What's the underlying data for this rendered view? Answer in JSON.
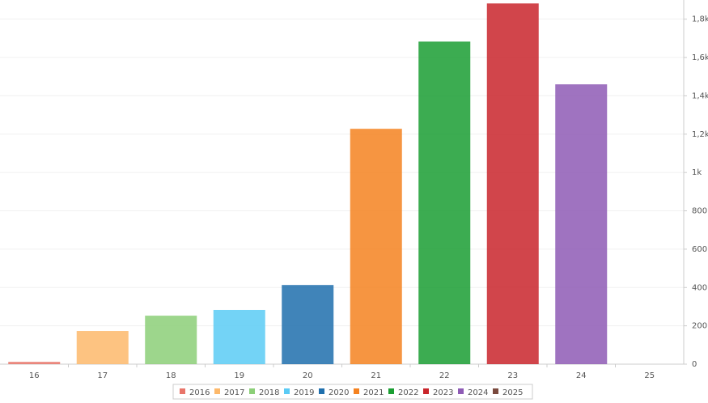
{
  "chart_data": {
    "type": "bar",
    "categories": [
      "16",
      "17",
      "18",
      "19",
      "20",
      "21",
      "22",
      "23",
      "24",
      "25"
    ],
    "series": [
      {
        "name": "2016",
        "color": "#e8756a",
        "values": [
          12,
          null,
          null,
          null,
          null,
          null,
          null,
          null,
          null,
          null
        ]
      },
      {
        "name": "2017",
        "color": "#fdb96b",
        "values": [
          null,
          173,
          null,
          null,
          null,
          null,
          null,
          null,
          null,
          null
        ]
      },
      {
        "name": "2018",
        "color": "#8ccf78",
        "values": [
          null,
          null,
          253,
          null,
          null,
          null,
          null,
          null,
          null,
          null
        ]
      },
      {
        "name": "2019",
        "color": "#5bcbf5",
        "values": [
          null,
          null,
          null,
          283,
          null,
          null,
          null,
          null,
          null,
          null
        ]
      },
      {
        "name": "2020",
        "color": "#1f6fad",
        "values": [
          null,
          null,
          null,
          null,
          413,
          null,
          null,
          null,
          null,
          null
        ]
      },
      {
        "name": "2021",
        "color": "#f58220",
        "values": [
          null,
          null,
          null,
          null,
          null,
          1228,
          null,
          null,
          null,
          null
        ]
      },
      {
        "name": "2022",
        "color": "#1a9e32",
        "values": [
          null,
          null,
          null,
          null,
          null,
          null,
          1683,
          null,
          null,
          null
        ]
      },
      {
        "name": "2023",
        "color": "#c9252b",
        "values": [
          null,
          null,
          null,
          null,
          null,
          null,
          null,
          1882,
          null,
          null
        ]
      },
      {
        "name": "2024",
        "color": "#8e5bb5",
        "values": [
          null,
          null,
          null,
          null,
          null,
          null,
          null,
          null,
          1460,
          null
        ]
      },
      {
        "name": "2025",
        "color": "#7b4a3e",
        "values": [
          null,
          null,
          null,
          null,
          null,
          null,
          null,
          null,
          null,
          null
        ]
      }
    ],
    "ylim": [
      0,
      1900
    ],
    "yticks": [
      0,
      200,
      400,
      600,
      800,
      {
        "value": 1000,
        "label": "1k"
      },
      {
        "value": 1200,
        "label": "1,2k"
      },
      {
        "value": 1400,
        "label": "1,4k"
      },
      {
        "value": 1600,
        "label": "1,6k"
      },
      {
        "value": 1800,
        "label": "1,8k"
      }
    ],
    "grid": true,
    "legend": "bottom"
  }
}
